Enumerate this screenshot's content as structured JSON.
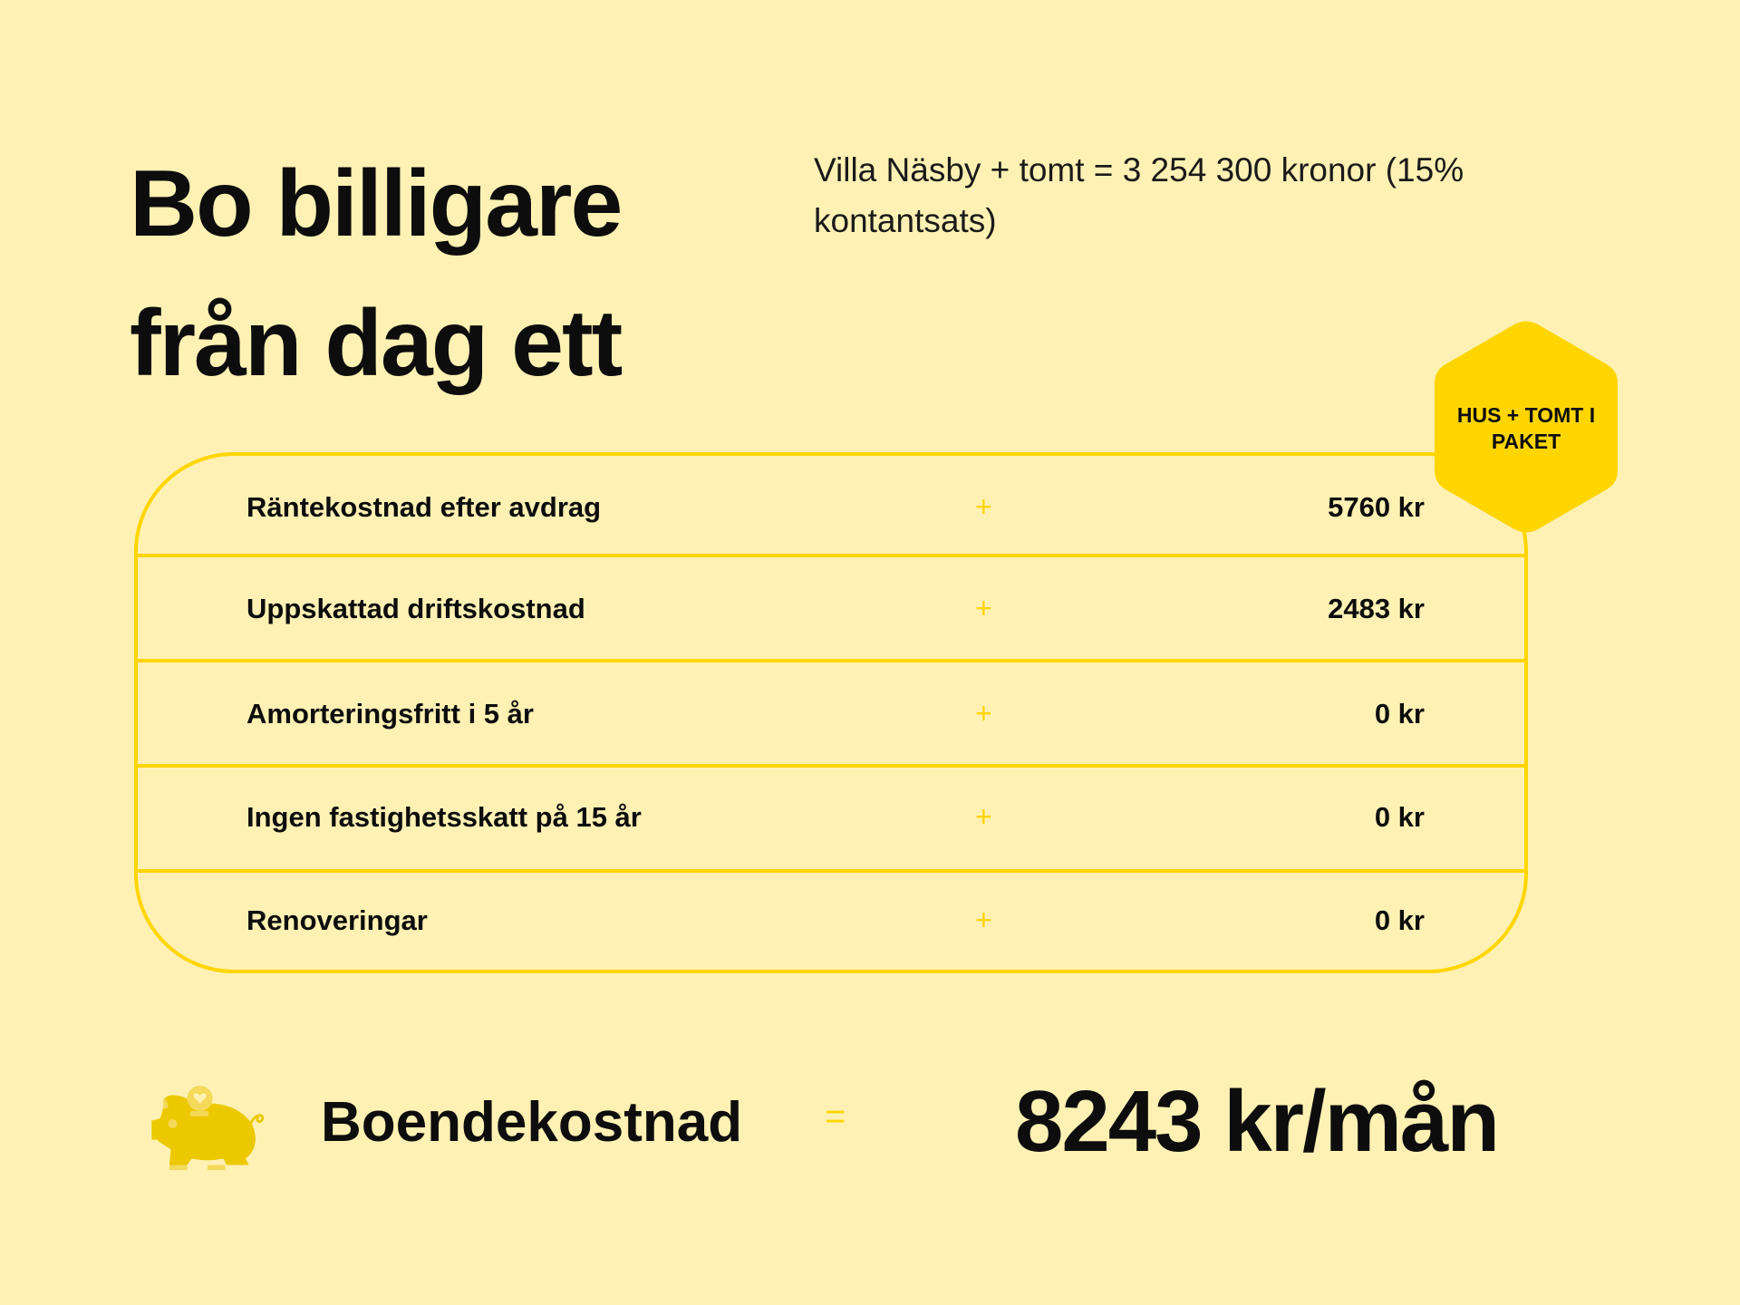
{
  "title_lines": [
    "Bo billigare",
    "från dag ett"
  ],
  "subtitle": "Villa Näsby + tomt = 3 254 300 kronor (15% kontantsats)",
  "badge": "HUS + TOMT I PAKET",
  "rows": [
    {
      "label": "Räntekostnad efter avdrag",
      "operator": "+",
      "value": "5760 kr"
    },
    {
      "label": "Uppskattad driftskostnad",
      "operator": "+",
      "value": "2483 kr"
    },
    {
      "label": "Amorteringsfritt i 5 år",
      "operator": "+",
      "value": "0 kr"
    },
    {
      "label": "Ingen fastighetsskatt på 15 år",
      "operator": "+",
      "value": "0 kr"
    },
    {
      "label": "Renoveringar",
      "operator": "+",
      "value": "0 kr"
    }
  ],
  "total": {
    "label": "Boendekostnad",
    "operator": "=",
    "value": "8243 kr/mån",
    "icon": "piggy-bank-icon"
  },
  "colors": {
    "background": "#FFF1B4",
    "accent": "#FFD500",
    "icon": "#EBC800"
  }
}
